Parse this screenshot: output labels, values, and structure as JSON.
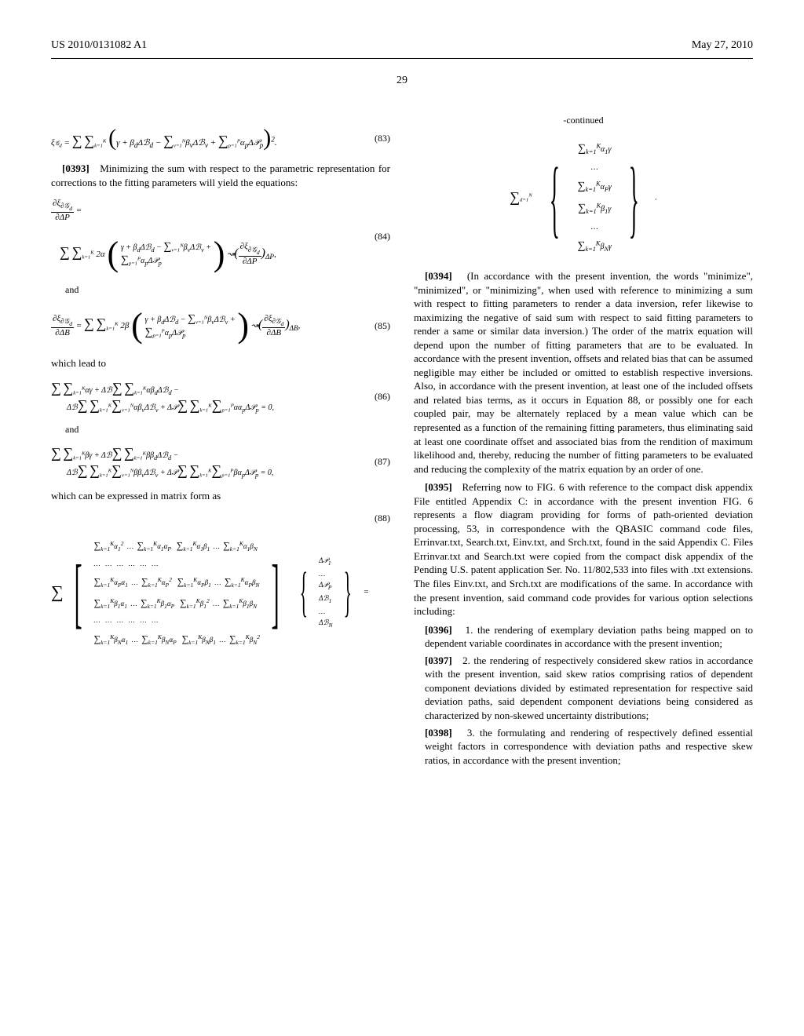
{
  "header": {
    "pub_number": "US 2010/0131082 A1",
    "date": "May 27, 2010"
  },
  "page_number": "29",
  "col1": {
    "eq83": {
      "num": "(83)"
    },
    "para0393": {
      "num": "[0393]",
      "text": "Minimizing the sum with respect to the parametric representation for corrections to the fitting parameters will yield the equations:"
    },
    "eq84": {
      "num": "(84)"
    },
    "and1": "and",
    "eq85": {
      "num": "(85)"
    },
    "lead_to": "which lead to",
    "eq86": {
      "num": "(86)"
    },
    "and2": "and",
    "eq87": {
      "num": "(87)"
    },
    "matrix_lead": "which can be expressed in matrix form as",
    "eq88": {
      "num": "(88)"
    }
  },
  "col2": {
    "continued": "-continued",
    "para0394": {
      "num": "[0394]",
      "text": "(In accordance with the present invention, the words \"minimize\", \"minimized\", or \"minimizing\", when used with reference to minimizing a sum with respect to fitting parameters to render a data inversion, refer likewise to maximizing the negative of said sum with respect to said fitting parameters to render a same or similar data inversion.) The order of the matrix equation will depend upon the number of fitting parameters that are to be evaluated. In accordance with the present invention, offsets and related bias that can be assumed negligible may either be included or omitted to establish respective inversions. Also, in accordance with the present invention, at least one of the included offsets and related bias terms, as it occurs in Equation 88, or possibly one for each coupled pair, may be alternately replaced by a mean value which can be represented as a function of the remaining fitting parameters, thus eliminating said at least one coordinate offset and associated bias from the rendition of maximum likelihood and, thereby, reducing the number of fitting parameters to be evaluated and reducing the complexity of the matrix equation by an order of one."
    },
    "para0395": {
      "num": "[0395]",
      "text": "Referring now to FIG. 6 with reference to the compact disk appendix File entitled Appendix C: in accordance with the present invention FIG. 6 represents a flow diagram providing for forms of path-oriented deviation processing, 53, in correspondence with the QBASIC command code files, Errinvar.txt, Search.txt, Einv.txt, and Srch.txt, found in the said Appendix C. Files Errinvar.txt and Search.txt were copied from the compact disk appendix of the Pending U.S. patent application Ser. No. 11/802,533 into files with .txt extensions. The files Einv.txt, and Srch.txt are modifications of the same. In accordance with the present invention, said command code provides for various option selections including:"
    },
    "item0396": {
      "num": "[0396]",
      "text": "1. the rendering of exemplary deviation paths being mapped on to dependent variable coordinates in accordance with the present invention;"
    },
    "item0397": {
      "num": "[0397]",
      "text": "2. the rendering of respectively considered skew ratios in accordance with the present invention, said skew ratios comprising ratios of dependent component deviations divided by estimated representation for respective said deviation paths, said dependent component deviations being considered as characterized by non-skewed uncertainty distributions;"
    },
    "item0398": {
      "num": "[0398]",
      "text": "3. the formulating and rendering of respectively defined essential weight factors in correspondence with deviation paths and respective skew ratios, in accordance with the present invention;"
    }
  }
}
